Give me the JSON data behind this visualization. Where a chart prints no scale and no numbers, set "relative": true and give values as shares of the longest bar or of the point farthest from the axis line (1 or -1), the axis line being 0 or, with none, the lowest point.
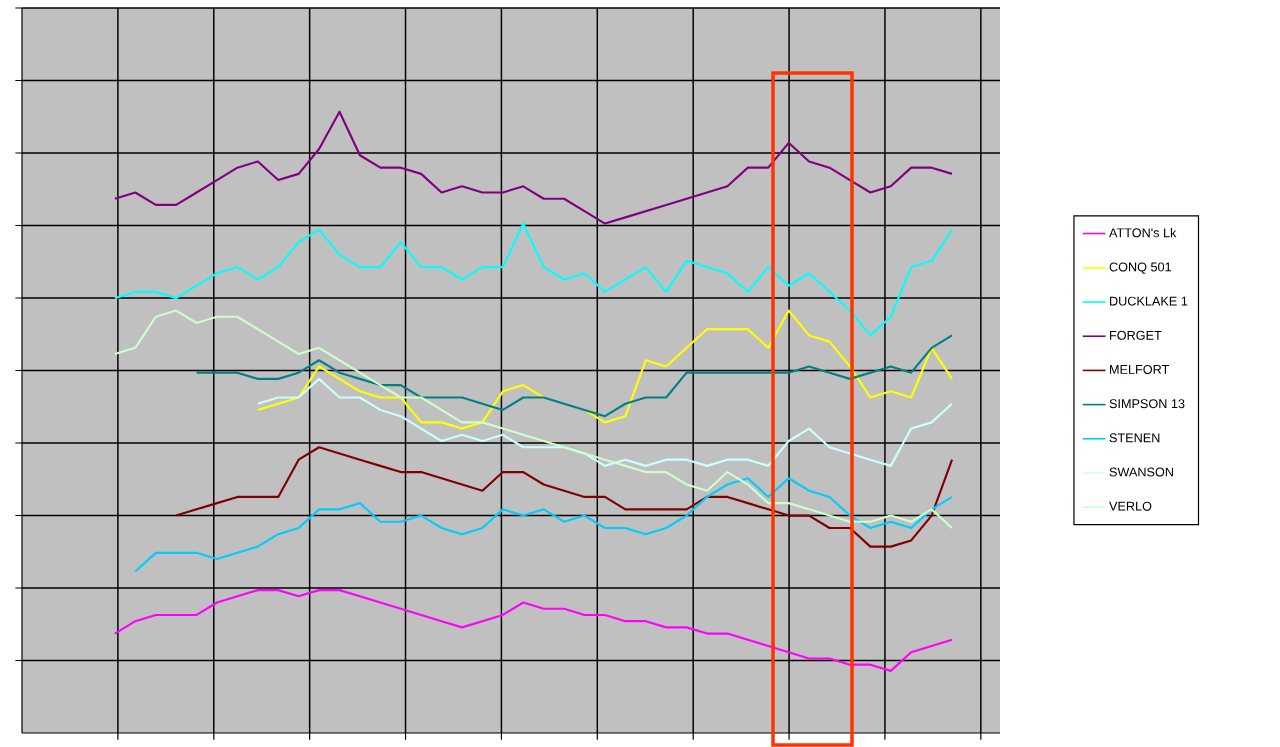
{
  "chart_data": {
    "type": "line",
    "relative": true,
    "grid": true,
    "legend": "right",
    "categories": [
      null,
      null,
      null,
      null,
      null,
      null,
      null,
      null,
      null,
      null,
      null,
      null,
      null,
      null,
      null,
      null,
      null,
      null,
      null,
      null,
      null,
      null,
      null,
      null,
      null,
      null,
      null,
      null,
      null,
      null,
      null,
      null,
      null,
      null,
      null,
      null,
      null,
      null,
      null,
      null,
      null,
      null
    ],
    "series": [
      {
        "name": "ATTON's Lk",
        "color": "#ff00ff",
        "values": [
          0.16,
          0.18,
          0.19,
          0.19,
          0.19,
          0.21,
          0.22,
          0.23,
          0.23,
          0.22,
          0.23,
          0.23,
          0.22,
          0.21,
          0.2,
          0.19,
          0.18,
          0.17,
          0.18,
          0.19,
          0.21,
          0.2,
          0.2,
          0.19,
          0.19,
          0.18,
          0.18,
          0.17,
          0.17,
          0.16,
          0.16,
          0.15,
          0.14,
          0.13,
          0.12,
          0.12,
          0.11,
          0.11,
          0.1,
          0.13,
          0.14,
          0.15
        ]
      },
      {
        "name": "CONQ 501",
        "color": "#ffff00",
        "values": [
          null,
          null,
          null,
          null,
          null,
          null,
          null,
          0.52,
          0.53,
          0.54,
          0.59,
          0.57,
          0.55,
          0.54,
          0.54,
          0.5,
          0.5,
          0.49,
          0.5,
          0.55,
          0.56,
          0.54,
          null,
          0.52,
          0.5,
          0.51,
          0.6,
          0.59,
          0.62,
          0.65,
          0.65,
          0.65,
          0.62,
          0.68,
          0.64,
          0.63,
          0.59,
          0.54,
          0.55,
          0.54,
          0.62,
          0.57
        ]
      },
      {
        "name": "DUCKLAKE 1",
        "color": "#00ffff",
        "values": [
          0.7,
          0.71,
          0.71,
          0.7,
          0.72,
          0.74,
          0.75,
          0.73,
          0.75,
          0.79,
          0.81,
          0.77,
          0.75,
          0.75,
          0.79,
          0.75,
          0.75,
          0.73,
          0.75,
          0.75,
          0.82,
          0.75,
          0.73,
          0.74,
          0.71,
          0.73,
          0.75,
          0.71,
          0.76,
          0.75,
          0.74,
          0.71,
          0.75,
          0.72,
          0.74,
          0.71,
          0.68,
          0.64,
          0.67,
          0.75,
          0.76,
          0.81
        ]
      },
      {
        "name": "FORGET",
        "color": "#800080",
        "values": [
          0.86,
          0.87,
          0.85,
          0.85,
          0.87,
          0.89,
          0.91,
          0.92,
          0.89,
          0.9,
          0.94,
          1.0,
          0.93,
          0.91,
          0.91,
          0.9,
          0.87,
          0.88,
          0.87,
          0.87,
          0.88,
          0.86,
          0.86,
          0.84,
          0.82,
          0.83,
          0.84,
          0.85,
          0.86,
          0.87,
          0.88,
          0.91,
          0.91,
          0.95,
          0.92,
          0.91,
          0.89,
          0.87,
          0.88,
          0.91,
          0.91,
          0.9
        ]
      },
      {
        "name": "MELFORT",
        "color": "#800000",
        "values": [
          null,
          null,
          null,
          0.35,
          0.36,
          0.37,
          0.38,
          0.38,
          0.38,
          0.44,
          0.46,
          0.45,
          0.44,
          0.43,
          0.42,
          0.42,
          0.41,
          0.4,
          0.39,
          0.42,
          0.42,
          0.4,
          0.39,
          0.38,
          0.38,
          0.36,
          0.36,
          0.36,
          0.36,
          0.38,
          0.38,
          0.37,
          0.36,
          0.35,
          0.35,
          0.33,
          0.33,
          0.3,
          0.3,
          0.31,
          0.35,
          0.44
        ]
      },
      {
        "name": "SIMPSON 13",
        "color": "#008080",
        "values": [
          null,
          null,
          null,
          null,
          0.58,
          0.58,
          0.58,
          0.57,
          0.57,
          0.58,
          0.6,
          0.58,
          0.57,
          0.56,
          0.56,
          0.54,
          0.54,
          0.54,
          0.53,
          0.52,
          0.54,
          0.54,
          0.53,
          0.52,
          0.51,
          0.53,
          0.54,
          0.54,
          0.58,
          0.58,
          0.58,
          0.58,
          0.58,
          0.58,
          0.59,
          0.58,
          0.57,
          0.58,
          0.59,
          0.58,
          0.62,
          0.64
        ]
      },
      {
        "name": "STENEN",
        "color": "#00ccff",
        "values": [
          null,
          0.26,
          0.29,
          0.29,
          0.29,
          0.28,
          0.29,
          0.3,
          0.32,
          0.33,
          0.36,
          0.36,
          0.37,
          0.34,
          0.34,
          0.35,
          0.33,
          0.32,
          0.33,
          0.36,
          0.35,
          0.36,
          0.34,
          0.35,
          0.33,
          0.33,
          0.32,
          0.33,
          0.35,
          0.38,
          0.4,
          0.41,
          0.38,
          0.41,
          0.39,
          0.38,
          0.35,
          0.33,
          0.34,
          0.33,
          0.36,
          0.38
        ]
      },
      {
        "name": "SWANSON",
        "color": "#ccffff",
        "values": [
          null,
          null,
          null,
          null,
          null,
          null,
          null,
          0.53,
          0.54,
          0.54,
          0.57,
          0.54,
          0.54,
          0.52,
          0.51,
          0.49,
          0.47,
          0.48,
          0.47,
          0.48,
          0.46,
          0.46,
          0.46,
          0.45,
          0.43,
          0.44,
          0.43,
          0.44,
          0.44,
          0.43,
          0.44,
          0.44,
          0.43,
          0.47,
          0.49,
          0.46,
          0.45,
          0.44,
          0.43,
          0.49,
          0.5,
          0.53
        ]
      },
      {
        "name": "VERLO",
        "color": "#ccffcc",
        "values": [
          0.61,
          0.62,
          0.67,
          0.68,
          0.66,
          0.67,
          0.67,
          0.65,
          0.63,
          0.61,
          0.62,
          0.6,
          0.58,
          0.56,
          0.54,
          0.54,
          0.52,
          0.5,
          0.5,
          0.49,
          0.48,
          0.47,
          0.46,
          0.45,
          0.44,
          0.43,
          0.42,
          0.42,
          0.4,
          0.39,
          0.42,
          0.4,
          0.37,
          0.37,
          0.36,
          0.35,
          0.34,
          0.34,
          0.35,
          0.34,
          0.36,
          0.33
        ]
      }
    ]
  }
}
